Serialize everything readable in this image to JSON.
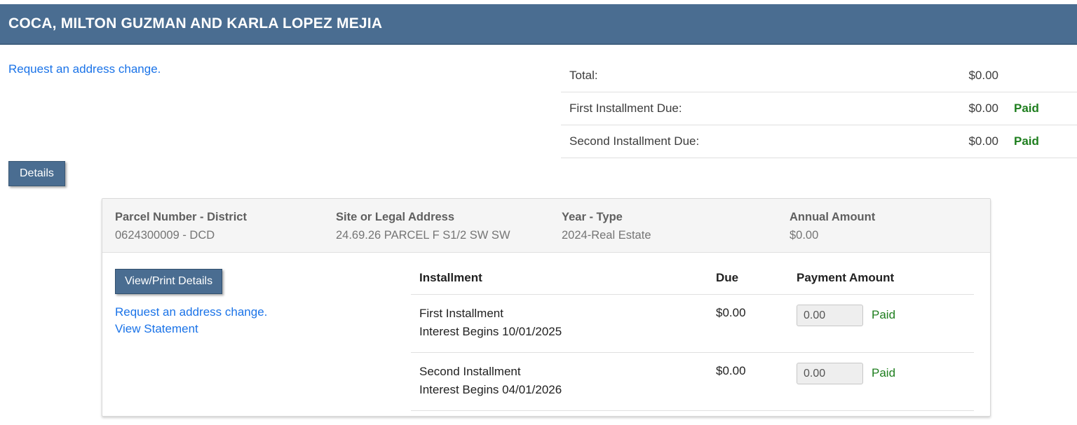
{
  "colors": {
    "header_bg": "#4a6d91",
    "link_blue": "#1a73e8",
    "paid_green": "#1e7e1e"
  },
  "header": {
    "owner_name": "COCA, MILTON GUZMAN AND KARLA LOPEZ MEJIA"
  },
  "address_change_link": "Request an address change.",
  "summary": {
    "rows": [
      {
        "label": "Total:",
        "amount": "$0.00",
        "status": ""
      },
      {
        "label": "First Installment Due:",
        "amount": "$0.00",
        "status": "Paid"
      },
      {
        "label": "Second Installment Due:",
        "amount": "$0.00",
        "status": "Paid"
      }
    ]
  },
  "details_button_label": "Details",
  "parcel_card": {
    "header": {
      "parcel_label": "Parcel Number - District",
      "parcel_value": "0624300009 - DCD",
      "address_label": "Site or Legal Address",
      "address_value": "24.69.26 PARCEL F S1/2 SW SW",
      "year_label": "Year - Type",
      "year_value": "2024-Real Estate",
      "amount_label": "Annual Amount",
      "amount_value": "$0.00"
    },
    "actions": {
      "view_print_button": "View/Print Details",
      "address_change_link": "Request an address change.",
      "view_statement_link": "View Statement"
    },
    "installments": {
      "columns": {
        "installment": "Installment",
        "due": "Due",
        "payment": "Payment Amount"
      },
      "rows": [
        {
          "name": "First Installment",
          "interest": "Interest Begins 10/01/2025",
          "due": "$0.00",
          "payment_value": "0.00",
          "status": "Paid"
        },
        {
          "name": "Second Installment",
          "interest": "Interest Begins 04/01/2026",
          "due": "$0.00",
          "payment_value": "0.00",
          "status": "Paid"
        }
      ]
    }
  }
}
